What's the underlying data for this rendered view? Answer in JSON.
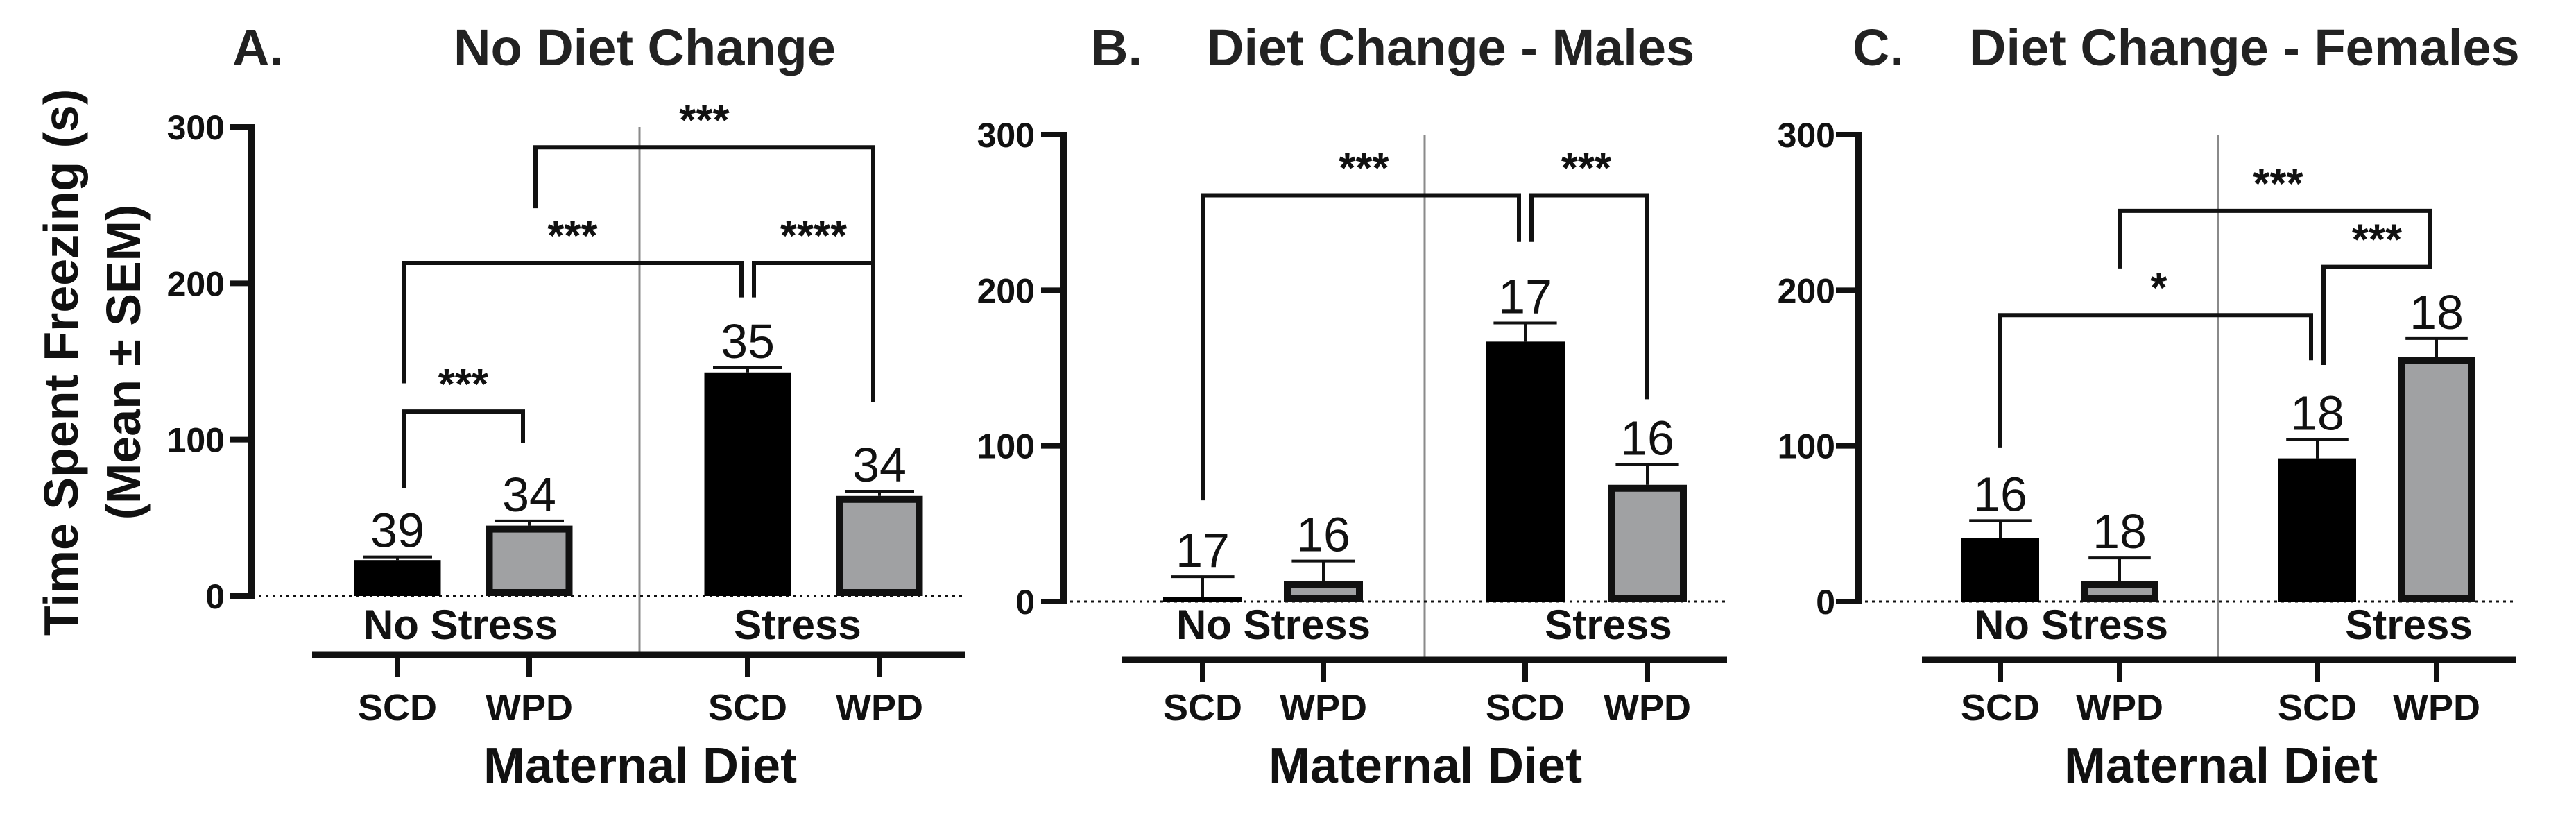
{
  "chart_data": [
    {
      "type": "bar",
      "panel_letter": "A.",
      "title": "No Diet Change",
      "ylabel": [
        "Time Spent Freezing (s)",
        "(Mean ± SEM)"
      ],
      "xlabel": "Maternal Diet",
      "groups": [
        "No Stress",
        "Stress"
      ],
      "categories": [
        "SCD",
        "WPD",
        "SCD",
        "WPD"
      ],
      "group_of_bar": [
        0,
        0,
        1,
        1
      ],
      "values": [
        23,
        45,
        143,
        64
      ],
      "sem": [
        2,
        3,
        3,
        3
      ],
      "n": [
        "39",
        "34",
        "35",
        "34"
      ],
      "yticks": [
        "0",
        "100",
        "200",
        "300"
      ],
      "ylim": [
        0,
        300
      ],
      "comparisons": [
        {
          "from": 0,
          "to": 1,
          "label": "***",
          "y": 118,
          "legs": [
            69,
            98
          ]
        },
        {
          "from": 0,
          "to": 2,
          "label": "***",
          "y": 213,
          "legs": [
            136,
            191
          ]
        },
        {
          "from": 2,
          "to": 3,
          "label": "****",
          "y": 213,
          "legs": [
            191,
            124
          ]
        },
        {
          "from": 1,
          "to": 3,
          "label": "***",
          "y": 287,
          "legs": [
            248,
            124
          ]
        }
      ]
    },
    {
      "type": "bar",
      "panel_letter": "B.",
      "title": "Diet Change - Males",
      "xlabel": "Maternal Diet",
      "groups": [
        "No Stress",
        "Stress"
      ],
      "categories": [
        "SCD",
        "WPD",
        "SCD",
        "WPD"
      ],
      "group_of_bar": [
        0,
        0,
        1,
        1
      ],
      "values": [
        3,
        13,
        167,
        75
      ],
      "sem": [
        13,
        13,
        12,
        13
      ],
      "n": [
        "17",
        "16",
        "17",
        "16"
      ],
      "yticks": [
        "0",
        "100",
        "200",
        "300"
      ],
      "ylim": [
        0,
        300
      ],
      "comparisons": [
        {
          "from": 0,
          "to": 2,
          "label": "***",
          "y": 261,
          "legs": [
            65,
            231
          ]
        },
        {
          "from": 2,
          "to": 3,
          "label": "***",
          "y": 261,
          "legs": [
            231,
            130
          ]
        }
      ]
    },
    {
      "type": "bar",
      "panel_letter": "C.",
      "title": "Diet Change - Females",
      "xlabel": "Maternal Diet",
      "groups": [
        "No Stress",
        "Stress"
      ],
      "categories": [
        "SCD",
        "WPD",
        "SCD",
        "WPD"
      ],
      "group_of_bar": [
        0,
        0,
        1,
        1
      ],
      "values": [
        41,
        13,
        92,
        157
      ],
      "sem": [
        11,
        15,
        12,
        12
      ],
      "n": [
        "16",
        "18",
        "18",
        "18"
      ],
      "yticks": [
        "0",
        "100",
        "200",
        "300"
      ],
      "ylim": [
        0,
        300
      ],
      "comparisons": [
        {
          "from": 0,
          "to": 2,
          "label": "*",
          "y": 184,
          "legs": [
            99,
            155
          ]
        },
        {
          "from": 2,
          "to": 3,
          "label": "***",
          "y": 215,
          "legs": [
            152,
            230
          ]
        },
        {
          "from": 1,
          "to": 3,
          "label": "***",
          "y": 251,
          "legs": [
            214,
            230
          ]
        }
      ]
    }
  ],
  "colors": {
    "scd_fill": "#000000",
    "wpd_fill": "#a0a1a3",
    "divider": "#8a8a8a",
    "ink": "#111111"
  }
}
